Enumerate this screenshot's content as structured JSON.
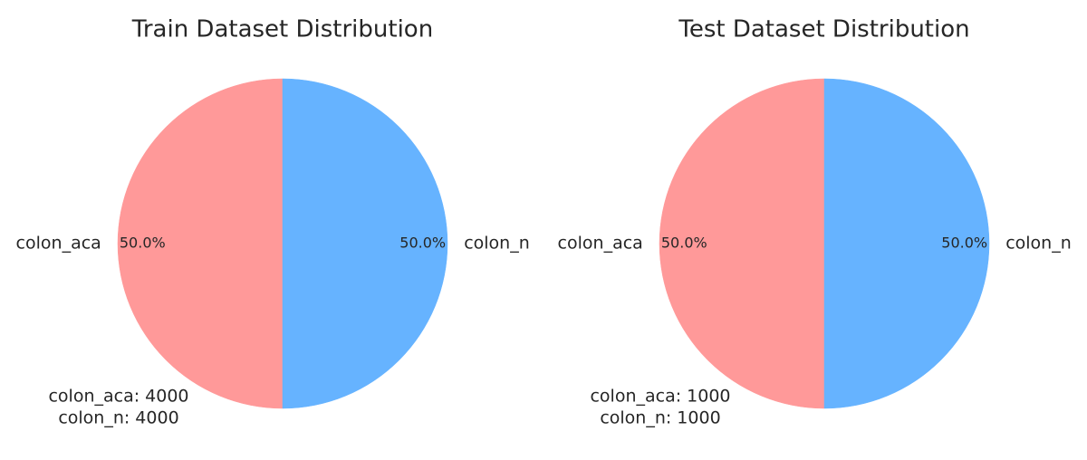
{
  "chart_data": [
    {
      "type": "pie",
      "title": "Train Dataset Distribution",
      "labels": [
        "colon_aca",
        "colon_n"
      ],
      "values": [
        4000,
        4000
      ],
      "percent_labels": [
        "50.0%",
        "50.0%"
      ],
      "colors": [
        "#ff9999",
        "#66b3ff"
      ],
      "annotation_lines": [
        "colon_aca: 4000",
        "colon_n: 4000"
      ]
    },
    {
      "type": "pie",
      "title": "Test Dataset Distribution",
      "labels": [
        "colon_aca",
        "colon_n"
      ],
      "values": [
        1000,
        1000
      ],
      "percent_labels": [
        "50.0%",
        "50.0%"
      ],
      "colors": [
        "#ff9999",
        "#66b3ff"
      ],
      "annotation_lines": [
        "colon_aca: 1000",
        "colon_n: 1000"
      ]
    }
  ]
}
